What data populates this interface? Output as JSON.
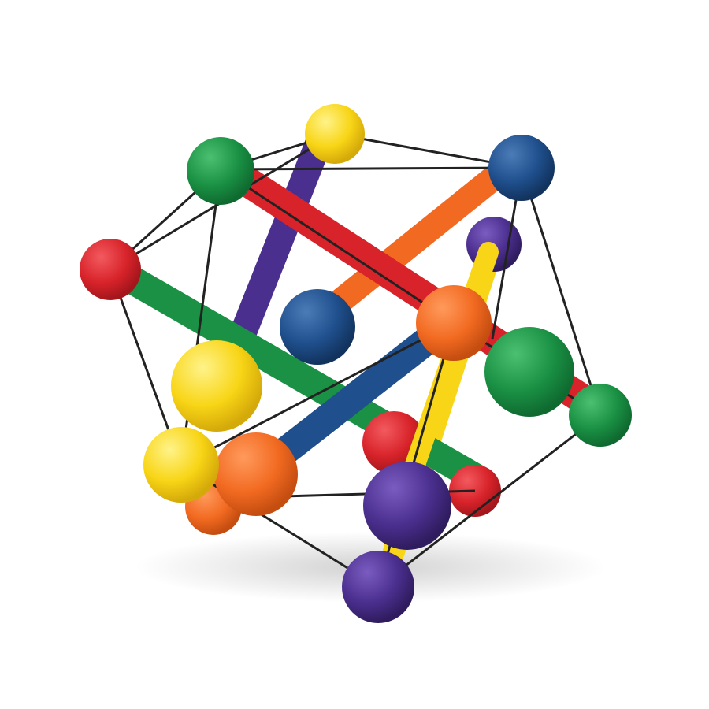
{
  "image": {
    "subject": "",
    "background_color": "#ffffff",
    "colors": {
      "red": "#d8232a",
      "orange": "#f26a21",
      "yellow": "#f8d516",
      "green": "#1a9144",
      "blue": "#1f4f8c",
      "purple": "#4b2f8f",
      "cord": "#222222"
    }
  }
}
